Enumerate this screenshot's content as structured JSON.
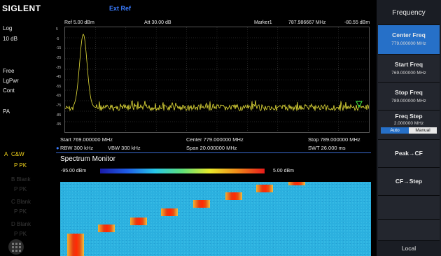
{
  "brand": "SIGLENT",
  "ext_ref": "Ext Ref",
  "left": {
    "scale_type": "Log",
    "scale_div": "10 dB",
    "sweep": "Free",
    "detector": "LgPwr",
    "mode": "Cont",
    "preamp": "PA",
    "trace_a_marker": "A",
    "trace_a_mode": "C&W",
    "trace_a_det": "P PK",
    "dim_traces": [
      "B Blank",
      "P PK",
      "C Blank",
      "P PK",
      "D Blank",
      "P PK"
    ]
  },
  "header": {
    "ref": "Ref  5.00 dBm",
    "att": "Att  30.00 dB",
    "marker_label": "Marker1",
    "marker_freq": "787.986667 MHz",
    "marker_level": "-80.55 dBm"
  },
  "y_ticks": [
    "5",
    "-5",
    "-15",
    "-25",
    "-35",
    "-45",
    "-55",
    "-65",
    "-75",
    "-85",
    "-95"
  ],
  "plot_colors": {
    "trace": "#e8e23a",
    "grid": "#4a4a4a",
    "marker": "#39d23a"
  },
  "info": {
    "start": "Start  769.000000 MHz",
    "center": "Center  779.000000 MHz",
    "stop": "Stop  789.000000 MHz",
    "rbw": "RBW  300 kHz",
    "vbw": "VBW  300 kHz",
    "span": "Span   20.000000 MHz",
    "swt": "SWT  26.000 ms"
  },
  "spectrum_monitor": {
    "title": "Spectrum Monitor",
    "scale_low": "-95.00 dBm",
    "scale_high": "5.00 dBm"
  },
  "softkeys": {
    "menu_title": "Frequency",
    "center_freq_label": "Center Freq",
    "center_freq_value": "779.000000 MHz",
    "start_freq_label": "Start Freq",
    "start_freq_value": "769.000000 MHz",
    "stop_freq_label": "Stop Freq",
    "stop_freq_value": "789.000000 MHz",
    "freq_step_label": "Freq Step",
    "freq_step_value": "2.000000 MHz",
    "auto_label": "Auto",
    "manual_label": "Manual",
    "peak_cf_label": "Peak→CF",
    "cf_step_label": "CF→Step",
    "local_label": "Local"
  }
}
